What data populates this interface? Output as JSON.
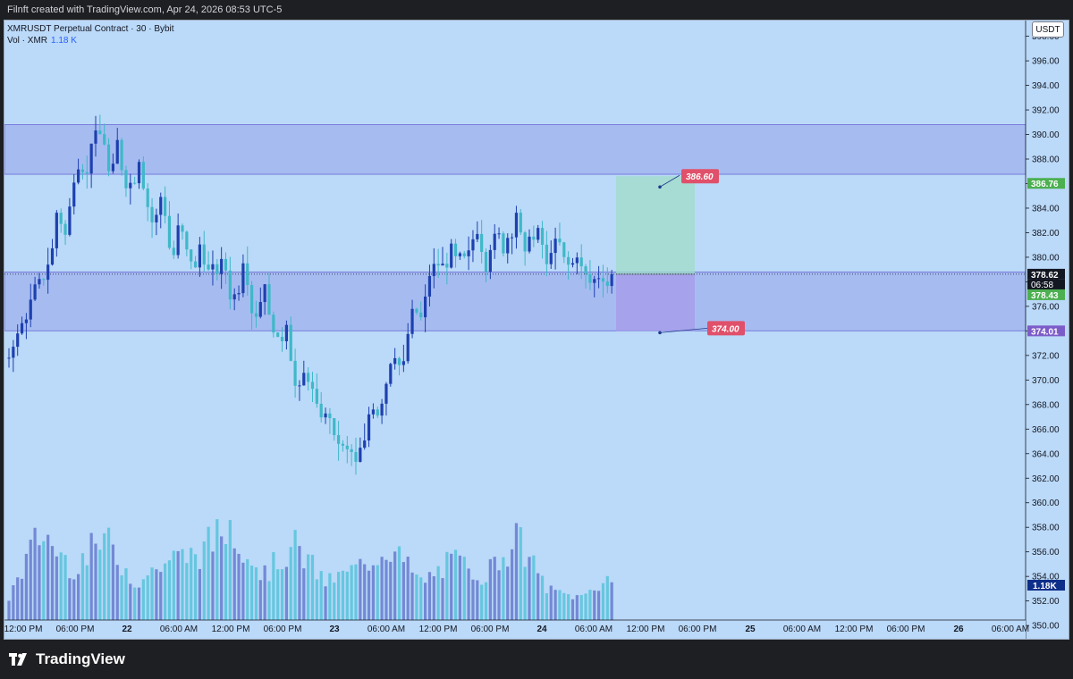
{
  "header": {
    "caption": "Filnft created with TradingView.com, Apr 24, 2026 08:53 UTC-5"
  },
  "legend": {
    "symbol": "XMRUSDT Perpetual Contract · 30 · Bybit",
    "vol_label": "Vol · XMR",
    "vol_value": "1.18 K"
  },
  "currency_button": "USDT",
  "brand": "TradingView",
  "colors": {
    "background": "#bbd9f8",
    "up": "#1e40af",
    "down": "#3fb8c8",
    "zone": "#8f98e8",
    "target": "#9fdcc8",
    "stop": "#a69ae8",
    "label_red": "#e0506a",
    "label_green": "#4caf50",
    "label_purple": "#7c5cc9"
  },
  "chart_data": {
    "type": "candlestick",
    "timeframe": "30",
    "ylim": [
      349.5,
      399.5
    ],
    "y_ticks": [
      "398.00",
      "396.00",
      "394.00",
      "392.00",
      "390.00",
      "388.00",
      "386.00",
      "384.00",
      "382.00",
      "380.00",
      "378.00",
      "376.00",
      "374.00",
      "372.00",
      "370.00",
      "368.00",
      "366.00",
      "364.00",
      "362.00",
      "360.00",
      "358.00",
      "356.00",
      "354.00",
      "352.00",
      "350.00"
    ],
    "x_ticks": [
      "12:00 PM",
      "06:00 PM",
      "22",
      "06:00 AM",
      "12:00 PM",
      "06:00 PM",
      "23",
      "06:00 AM",
      "12:00 PM",
      "06:00 PM",
      "24",
      "06:00 AM",
      "12:00 PM",
      "06:00 PM",
      "25",
      "06:00 AM",
      "12:00 PM",
      "06:00 PM",
      "26",
      "06:00 AM"
    ],
    "x_tick_bold": [
      "22",
      "23",
      "24",
      "25",
      "26"
    ],
    "zones": [
      {
        "from": 386.76,
        "to": 390.8
      },
      {
        "from": 374.01,
        "to": 378.8
      }
    ],
    "position": {
      "entry": 378.62,
      "target": 386.6,
      "stop": 374.0,
      "target_label": "386.60",
      "stop_label": "374.00"
    },
    "price_labels": {
      "current": "378.62",
      "countdown": "06:58",
      "open": "378.43",
      "zone_top": "386.76",
      "zone_bottom": "374.01",
      "volume": "1.18K"
    },
    "anchors": [
      [
        371.2,
        372.4
      ],
      [
        387.2,
        392.6
      ],
      [
        377.6,
        384.6
      ],
      [
        371.6,
        379.2
      ],
      [
        361.8,
        364.4
      ],
      [
        377.8,
        381.6
      ],
      [
        378.6,
        385.2
      ],
      [
        377.4,
        377.6
      ]
    ],
    "volume_anchors": [
      0.1,
      0.55,
      0.3,
      0.5,
      0.2,
      0.35,
      0.4,
      0.6,
      0.25,
      0.45,
      0.2,
      0.3,
      0.45,
      0.2,
      0.35,
      0.25,
      0.5,
      0.15,
      0.1,
      0.25
    ]
  }
}
